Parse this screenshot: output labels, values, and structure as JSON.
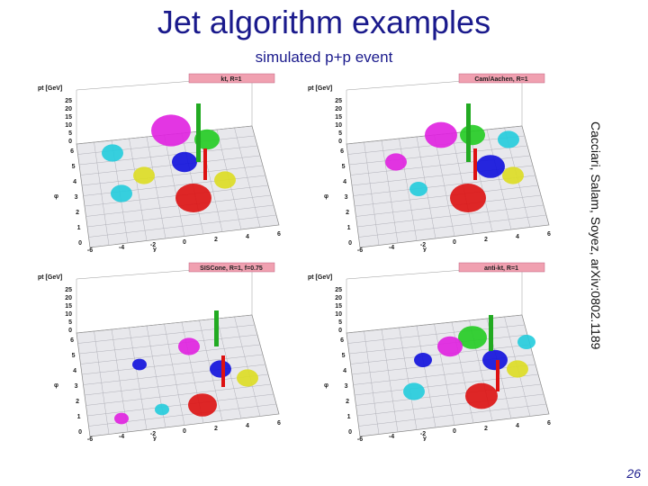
{
  "slide": {
    "title": "Jet algorithm examples",
    "subtitle": "simulated p+p event",
    "credit": "Cacciari, Salam, Soyez, arXiv:0802.1189",
    "page_number": "26"
  },
  "panels": [
    {
      "algorithm_label": "kt, R=1",
      "y_axis_label": "pt [GeV]",
      "x_axis_label": "y",
      "phi_label": "φ"
    },
    {
      "algorithm_label": "Cam/Aachen, R=1",
      "y_axis_label": "pt [GeV]",
      "x_axis_label": "y",
      "phi_label": "φ"
    },
    {
      "algorithm_label": "SISCone, R=1, f=0.75",
      "y_axis_label": "pt [GeV]",
      "x_axis_label": "y",
      "phi_label": "φ"
    },
    {
      "algorithm_label": "anti-kt, R=1",
      "y_axis_label": "pt [GeV]",
      "x_axis_label": "y",
      "phi_label": "φ"
    }
  ],
  "axes": {
    "pt_ticks": [
      "25",
      "20",
      "15",
      "10",
      "5",
      "0"
    ],
    "phi_ticks": [
      "6",
      "5",
      "4",
      "3",
      "2",
      "1",
      "0"
    ],
    "y_ticks": [
      "-6",
      "-4",
      "-2",
      "0",
      "2",
      "4",
      "6"
    ]
  },
  "colors": {
    "text_blue": "#1a1a8c",
    "label_box": "#f0a0b0",
    "tower": "#22aa22",
    "red_jet": "#dd1111",
    "magenta_jet": "#e020e0",
    "blue_jet": "#1010dd",
    "green_jet": "#22cc22",
    "yellow_jet": "#dddd22",
    "cyan_jet": "#22ccdd"
  }
}
